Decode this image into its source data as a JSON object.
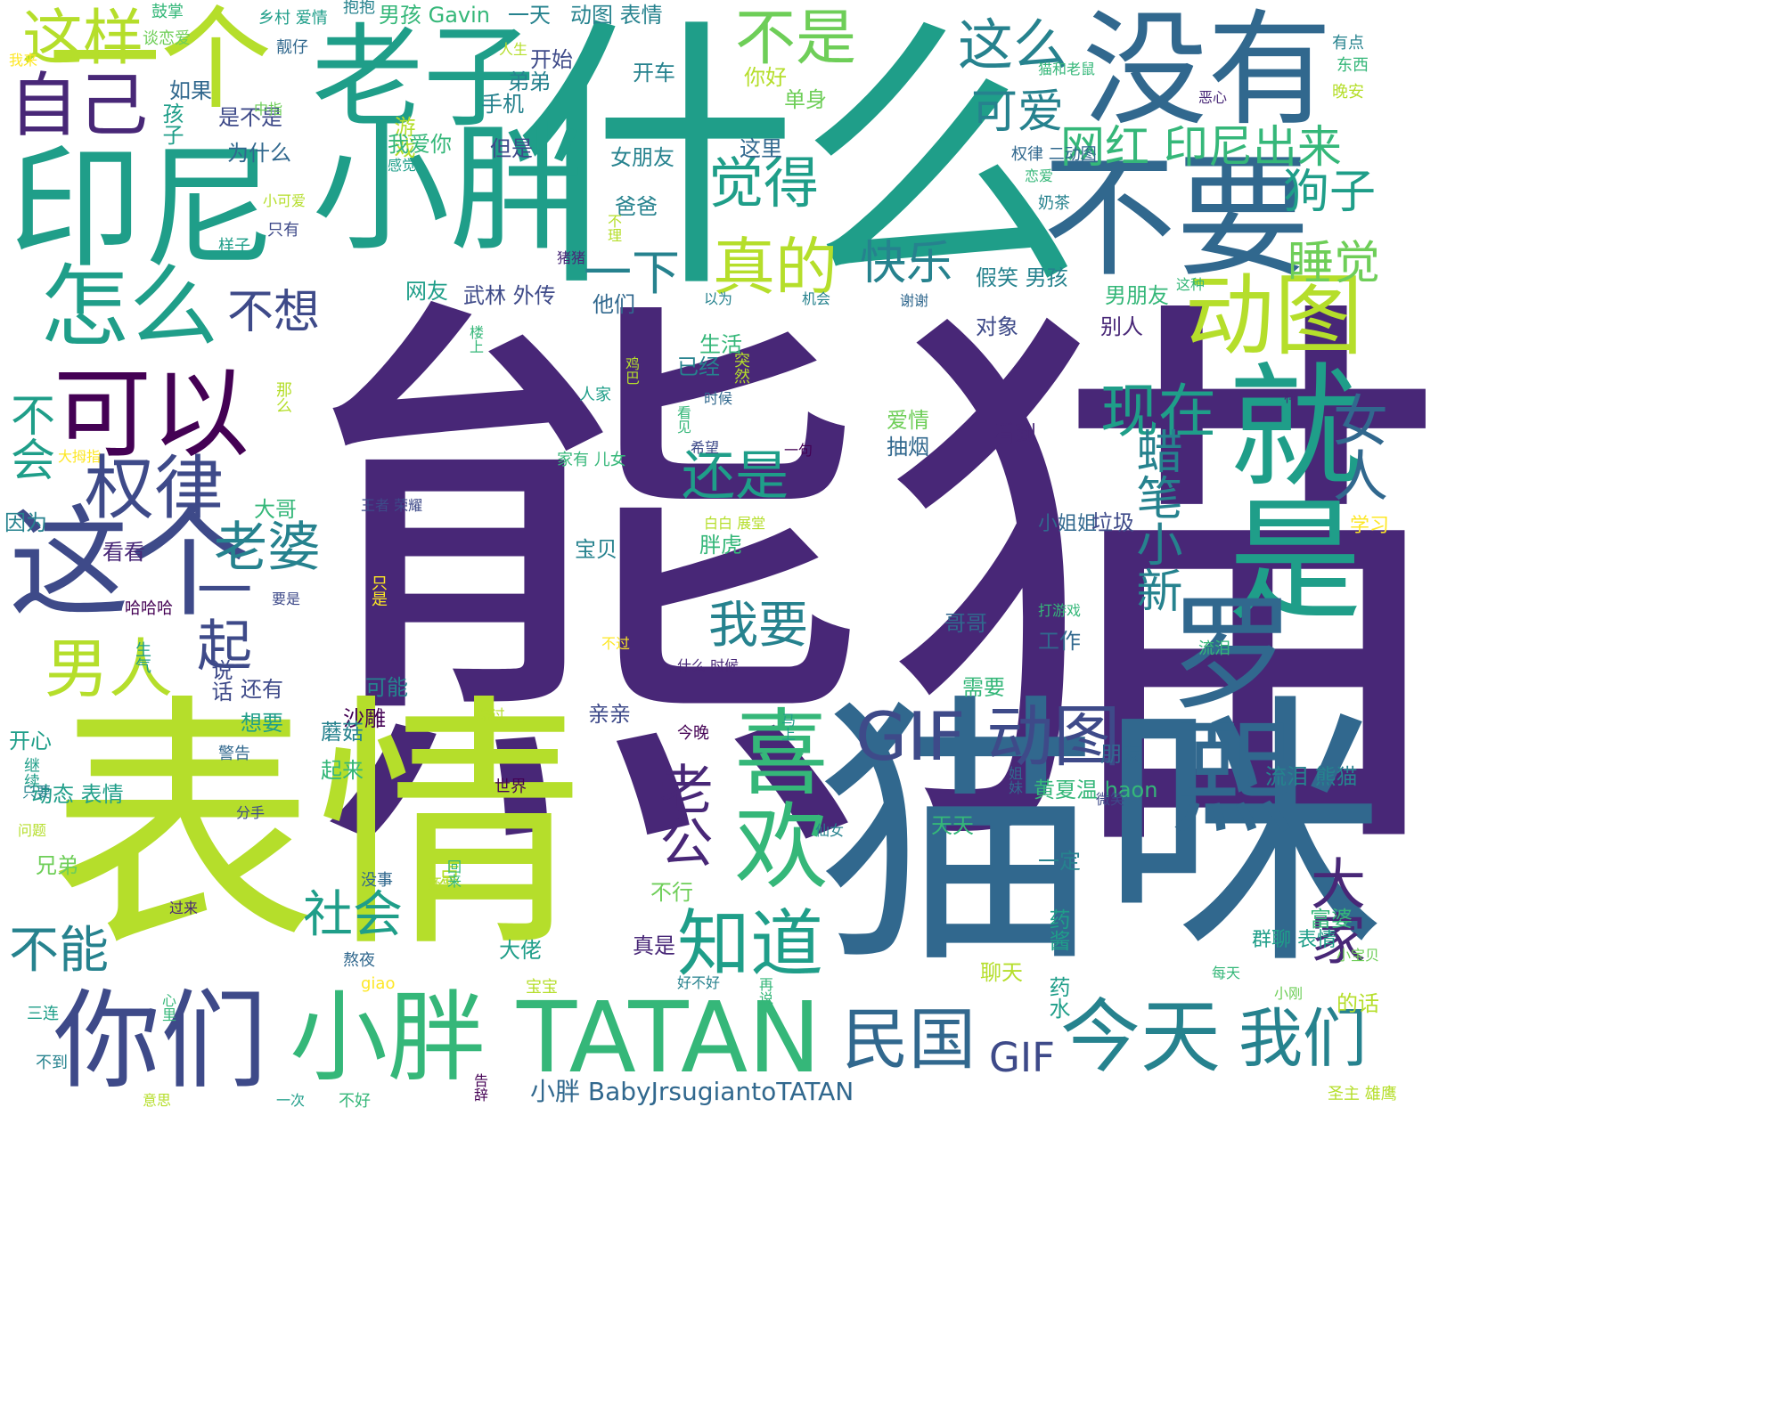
{
  "colors": {
    "background": "#ffffff",
    "palette": [
      "#440154",
      "#482777",
      "#3e4a89",
      "#31688e",
      "#26828e",
      "#1f9e89",
      "#35b779",
      "#6ece58",
      "#b5de2b",
      "#fde725"
    ]
  },
  "words": [
    {
      "text": "熊猫",
      "weight": 100
    },
    {
      "text": "表情",
      "weight": 90
    },
    {
      "text": "什么",
      "weight": 84
    },
    {
      "text": "猫咪",
      "weight": 80
    },
    {
      "text": "印尼",
      "weight": 60
    },
    {
      "text": "小胖",
      "weight": 58
    },
    {
      "text": "没有",
      "weight": 55
    },
    {
      "text": "老子",
      "weight": 50
    },
    {
      "text": "不要",
      "weight": 48
    },
    {
      "text": "就是",
      "weight": 46
    },
    {
      "text": "罗熙",
      "weight": 44
    },
    {
      "text": "一个",
      "weight": 40
    },
    {
      "text": "这个",
      "weight": 40
    },
    {
      "text": "你们",
      "weight": 38
    },
    {
      "text": "小胖 TATAN",
      "weight": 36
    },
    {
      "text": "可以",
      "weight": 35
    },
    {
      "text": "喜欢",
      "weight": 34
    },
    {
      "text": "怎么",
      "weight": 32
    },
    {
      "text": "动图",
      "weight": 32
    },
    {
      "text": "自己",
      "weight": 28
    },
    {
      "text": "今天",
      "weight": 27
    },
    {
      "text": "GIF 动图",
      "weight": 26
    },
    {
      "text": "知道",
      "weight": 26
    },
    {
      "text": "权律",
      "weight": 24
    },
    {
      "text": "不是",
      "weight": 23
    },
    {
      "text": "这样",
      "weight": 22
    },
    {
      "text": "这么",
      "weight": 22
    },
    {
      "text": "觉得",
      "weight": 21
    },
    {
      "text": "真的",
      "weight": 21
    },
    {
      "text": "男人",
      "weight": 21
    },
    {
      "text": "老公",
      "weight": 21
    },
    {
      "text": "民国",
      "weight": 21
    },
    {
      "text": "我们",
      "weight": 20
    },
    {
      "text": "现在",
      "weight": 20
    },
    {
      "text": "一起",
      "weight": 20
    },
    {
      "text": "大家",
      "weight": 19
    },
    {
      "text": "老婆",
      "weight": 19
    },
    {
      "text": "女人",
      "weight": 19
    },
    {
      "text": "网红 印尼出来",
      "weight": 18
    },
    {
      "text": "蜡笔小新",
      "weight": 18
    },
    {
      "text": "还是",
      "weight": 18
    },
    {
      "text": "我要",
      "weight": 17
    },
    {
      "text": "社会",
      "weight": 17
    },
    {
      "text": "不能",
      "weight": 17
    },
    {
      "text": "快乐",
      "weight": 16
    },
    {
      "text": "一下",
      "weight": 16
    },
    {
      "text": "可爱",
      "weight": 16
    },
    {
      "text": "狗子",
      "weight": 16
    },
    {
      "text": "睡觉",
      "weight": 16
    },
    {
      "text": "不想",
      "weight": 16
    },
    {
      "text": "不会",
      "weight": 15
    },
    {
      "text": "GIF",
      "weight": 14
    },
    {
      "text": "小胖 BabyJrsugiantoTATAN",
      "weight": 10
    },
    {
      "text": "一天",
      "weight": 10
    },
    {
      "text": "动图 表情",
      "weight": 9
    },
    {
      "text": "男孩 Gavin",
      "weight": 9
    },
    {
      "text": "开始",
      "weight": 9
    },
    {
      "text": "开车",
      "weight": 9
    },
    {
      "text": "你好",
      "weight": 9
    },
    {
      "text": "单身",
      "weight": 9
    },
    {
      "text": "女朋友",
      "weight": 9
    },
    {
      "text": "这里",
      "weight": 9
    },
    {
      "text": "假笑 男孩",
      "weight": 9
    },
    {
      "text": "男朋友",
      "weight": 9
    },
    {
      "text": "武林 外传",
      "weight": 9
    },
    {
      "text": "他们",
      "weight": 9
    },
    {
      "text": "对象",
      "weight": 9
    },
    {
      "text": "别人",
      "weight": 9
    },
    {
      "text": "生活",
      "weight": 9
    },
    {
      "text": "已经",
      "weight": 9
    },
    {
      "text": "爱情",
      "weight": 9
    },
    {
      "text": "抽烟",
      "weight": 9
    },
    {
      "text": "看到",
      "weight": 9
    },
    {
      "text": "大哥",
      "weight": 9
    },
    {
      "text": "宝贝",
      "weight": 9
    },
    {
      "text": "胖虎",
      "weight": 9
    },
    {
      "text": "看看",
      "weight": 9
    },
    {
      "text": "哥哥",
      "weight": 9
    },
    {
      "text": "工作",
      "weight": 9
    },
    {
      "text": "小姐姐",
      "weight": 8
    },
    {
      "text": "垃圾",
      "weight": 9
    },
    {
      "text": "沙雕",
      "weight": 9
    },
    {
      "text": "亲亲",
      "weight": 9
    },
    {
      "text": "需要",
      "weight": 9
    },
    {
      "text": "蘑菇",
      "weight": 9
    },
    {
      "text": "起来",
      "weight": 9
    },
    {
      "text": "朋友",
      "weight": 9
    },
    {
      "text": "黄夏温 haon",
      "weight": 9
    },
    {
      "text": "流泪 熊猫",
      "weight": 9
    },
    {
      "text": "兄弟",
      "weight": 9
    },
    {
      "text": "不行",
      "weight": 9
    },
    {
      "text": "一定",
      "weight": 9
    },
    {
      "text": "富婆",
      "weight": 9
    },
    {
      "text": "大佬",
      "weight": 9
    },
    {
      "text": "聊天",
      "weight": 9
    },
    {
      "text": "真是",
      "weight": 9
    },
    {
      "text": "的话",
      "weight": 9
    },
    {
      "text": "开心",
      "weight": 9
    },
    {
      "text": "动态 表情",
      "weight": 9
    },
    {
      "text": "因为",
      "weight": 9
    },
    {
      "text": "说话",
      "weight": 9
    },
    {
      "text": "还有",
      "weight": 9
    },
    {
      "text": "想要",
      "weight": 9
    },
    {
      "text": "可能",
      "weight": 9
    },
    {
      "text": "如果",
      "weight": 9
    },
    {
      "text": "是不是",
      "weight": 9
    },
    {
      "text": "为什么",
      "weight": 9
    },
    {
      "text": "游戏",
      "weight": 9
    },
    {
      "text": "手机",
      "weight": 9
    },
    {
      "text": "弟弟",
      "weight": 9
    },
    {
      "text": "我爱你",
      "weight": 9
    },
    {
      "text": "但是",
      "weight": 9
    },
    {
      "text": "爸爸",
      "weight": 9
    },
    {
      "text": "孩子",
      "weight": 9
    },
    {
      "text": "网友",
      "weight": 9
    },
    {
      "text": "天天",
      "weight": 9
    },
    {
      "text": "药酱 药水",
      "weight": 9
    },
    {
      "text": "群聊 表情",
      "weight": 8
    },
    {
      "text": "一点",
      "weight": 9
    },
    {
      "text": "学习",
      "weight": 8
    },
    {
      "text": "鼓掌",
      "weight": 7
    },
    {
      "text": "谈恋爱",
      "weight": 7
    },
    {
      "text": "乡村 爱情",
      "weight": 7
    },
    {
      "text": "抱抱",
      "weight": 7
    },
    {
      "text": "靓仔",
      "weight": 7
    },
    {
      "text": "我来",
      "weight": 7
    },
    {
      "text": "中指",
      "weight": 7
    },
    {
      "text": "人生",
      "weight": 7
    },
    {
      "text": "有点",
      "weight": 7
    },
    {
      "text": "东西",
      "weight": 7
    },
    {
      "text": "晚安",
      "weight": 7
    },
    {
      "text": "猫和老鼠",
      "weight": 7
    },
    {
      "text": "恶心",
      "weight": 7
    },
    {
      "text": "权律 二动图",
      "weight": 7
    },
    {
      "text": "恋爱",
      "weight": 7
    },
    {
      "text": "奶茶",
      "weight": 7
    },
    {
      "text": "感觉",
      "weight": 7
    },
    {
      "text": "小可爱",
      "weight": 7
    },
    {
      "text": "只有",
      "weight": 7
    },
    {
      "text": "样子",
      "weight": 7
    },
    {
      "text": "不理",
      "weight": 7
    },
    {
      "text": "猪猪",
      "weight": 7
    },
    {
      "text": "以为",
      "weight": 7
    },
    {
      "text": "机会",
      "weight": 7
    },
    {
      "text": "谢谢",
      "weight": 7
    },
    {
      "text": "这种",
      "weight": 7
    },
    {
      "text": "楼上",
      "weight": 7
    },
    {
      "text": "突然",
      "weight": 7
    },
    {
      "text": "鸡巴",
      "weight": 7
    },
    {
      "text": "人家",
      "weight": 7
    },
    {
      "text": "时候",
      "weight": 7
    },
    {
      "text": "看见",
      "weight": 7
    },
    {
      "text": "一样",
      "weight": 7
    },
    {
      "text": "那么",
      "weight": 7
    },
    {
      "text": "希望",
      "weight": 7
    },
    {
      "text": "一句",
      "weight": 7
    },
    {
      "text": "大拇指",
      "weight": 7
    },
    {
      "text": "家有 儿女",
      "weight": 7
    },
    {
      "text": "王者 荣耀",
      "weight": 7
    },
    {
      "text": "白白 展堂",
      "weight": 7
    },
    {
      "text": "要是",
      "weight": 7
    },
    {
      "text": "只是",
      "weight": 7
    },
    {
      "text": "哈哈哈",
      "weight": 7
    },
    {
      "text": "生气",
      "weight": 7
    },
    {
      "text": "打游戏",
      "weight": 7
    },
    {
      "text": "不过",
      "weight": 7
    },
    {
      "text": "什么 时候",
      "weight": 7
    },
    {
      "text": "流泪",
      "weight": 7
    },
    {
      "text": "路过",
      "weight": 7
    },
    {
      "text": "今晚",
      "weight": 7
    },
    {
      "text": "马上",
      "weight": 7
    },
    {
      "text": "警告",
      "weight": 7
    },
    {
      "text": "继续",
      "weight": 7
    },
    {
      "text": "只要",
      "weight": 7
    },
    {
      "text": "世界",
      "weight": 7
    },
    {
      "text": "姐妹",
      "weight": 7
    },
    {
      "text": "微笑",
      "weight": 7
    },
    {
      "text": "分手",
      "weight": 7
    },
    {
      "text": "问题",
      "weight": 7
    },
    {
      "text": "仙女",
      "weight": 7
    },
    {
      "text": "没事",
      "weight": 7
    },
    {
      "text": "还要",
      "weight": 7
    },
    {
      "text": "回来",
      "weight": 7
    },
    {
      "text": "过来",
      "weight": 7
    },
    {
      "text": "熬夜",
      "weight": 7
    },
    {
      "text": "giao",
      "weight": 7
    },
    {
      "text": "宝宝",
      "weight": 7
    },
    {
      "text": "好不好",
      "weight": 7
    },
    {
      "text": "再说",
      "weight": 7
    },
    {
      "text": "每天",
      "weight": 7
    },
    {
      "text": "小宝贝",
      "weight": 7
    },
    {
      "text": "小刚",
      "weight": 7
    },
    {
      "text": "三连",
      "weight": 7
    },
    {
      "text": "心里",
      "weight": 7
    },
    {
      "text": "不到",
      "weight": 7
    },
    {
      "text": "意思",
      "weight": 7
    },
    {
      "text": "一次",
      "weight": 7
    },
    {
      "text": "不好",
      "weight": 7
    },
    {
      "text": "告辞",
      "weight": 7
    },
    {
      "text": "圣主 雄鹰",
      "weight": 7
    }
  ]
}
